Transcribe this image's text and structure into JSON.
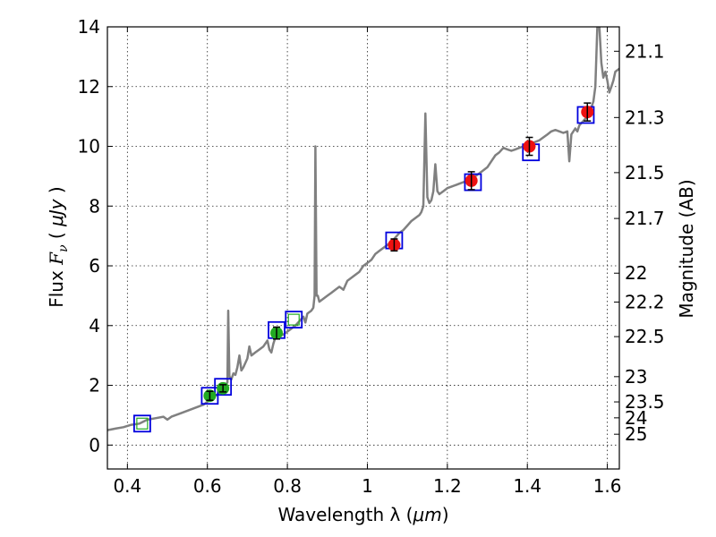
{
  "chart_data": {
    "type": "scatter",
    "title": "",
    "xlabel": {
      "prefix": "Wavelength  λ (",
      "unit": "μm",
      "suffix": ")"
    },
    "ylabel": {
      "prefix": "Flux  ",
      "symbol": "F",
      "subscript": "ν",
      "mid": "  ( ",
      "unit": "μJy",
      "suffix": " )"
    },
    "y2label": "Magnitude (AB)",
    "xlim": [
      0.35,
      1.63
    ],
    "ylim": [
      -0.8,
      14
    ],
    "xticks": [
      0.4,
      0.6,
      0.8,
      1.0,
      1.2,
      1.4,
      1.6
    ],
    "xtick_labels": [
      "0.4",
      "0.6",
      "0.8",
      "1",
      "1.2",
      "1.4",
      "1.6"
    ],
    "yticks": [
      0,
      2,
      4,
      6,
      8,
      10,
      12,
      14
    ],
    "ytick_labels": [
      "0",
      "2",
      "4",
      "6",
      "8",
      "10",
      "12",
      "14"
    ],
    "y2ticks": [
      {
        "label": "21.1",
        "mag": 21.1
      },
      {
        "label": "21.3",
        "mag": 21.3
      },
      {
        "label": "21.5",
        "mag": 21.5
      },
      {
        "label": "21.7",
        "mag": 21.7
      },
      {
        "label": "22",
        "mag": 22.0
      },
      {
        "label": "22.2",
        "mag": 22.2
      },
      {
        "label": "22.5",
        "mag": 22.5
      },
      {
        "label": "23",
        "mag": 23.0
      },
      {
        "label": "23.5",
        "mag": 23.5
      },
      {
        "label": "24",
        "mag": 24.0
      },
      {
        "label": "25",
        "mag": 25.0
      }
    ],
    "grid": true,
    "colors": {
      "spectrum": "#808080",
      "model_box": "#0000dd",
      "optical_point": "#22aa22",
      "nir_point": "#ee1111",
      "errorbar": "#000000"
    },
    "spectrum": [
      [
        0.35,
        0.5
      ],
      [
        0.37,
        0.55
      ],
      [
        0.39,
        0.6
      ],
      [
        0.41,
        0.68
      ],
      [
        0.43,
        0.72
      ],
      [
        0.45,
        0.85
      ],
      [
        0.47,
        0.9
      ],
      [
        0.49,
        0.95
      ],
      [
        0.5,
        0.85
      ],
      [
        0.51,
        0.95
      ],
      [
        0.53,
        1.05
      ],
      [
        0.55,
        1.15
      ],
      [
        0.57,
        1.25
      ],
      [
        0.59,
        1.35
      ],
      [
        0.6,
        1.45
      ],
      [
        0.61,
        1.55
      ],
      [
        0.62,
        1.65
      ],
      [
        0.63,
        1.75
      ],
      [
        0.635,
        1.85
      ],
      [
        0.64,
        1.9
      ],
      [
        0.645,
        2.0
      ],
      [
        0.65,
        2.1
      ],
      [
        0.652,
        4.5
      ],
      [
        0.655,
        2.3
      ],
      [
        0.66,
        2.2
      ],
      [
        0.665,
        2.4
      ],
      [
        0.67,
        2.35
      ],
      [
        0.675,
        2.6
      ],
      [
        0.68,
        3.0
      ],
      [
        0.685,
        2.5
      ],
      [
        0.69,
        2.6
      ],
      [
        0.7,
        2.9
      ],
      [
        0.705,
        3.3
      ],
      [
        0.71,
        3.0
      ],
      [
        0.72,
        3.1
      ],
      [
        0.73,
        3.2
      ],
      [
        0.74,
        3.3
      ],
      [
        0.75,
        3.5
      ],
      [
        0.755,
        3.2
      ],
      [
        0.76,
        3.1
      ],
      [
        0.765,
        3.4
      ],
      [
        0.77,
        3.6
      ],
      [
        0.78,
        3.65
      ],
      [
        0.79,
        3.7
      ],
      [
        0.8,
        3.8
      ],
      [
        0.81,
        3.9
      ],
      [
        0.82,
        4.0
      ],
      [
        0.83,
        4.15
      ],
      [
        0.84,
        4.3
      ],
      [
        0.845,
        4.1
      ],
      [
        0.85,
        4.4
      ],
      [
        0.86,
        4.5
      ],
      [
        0.865,
        4.6
      ],
      [
        0.868,
        5.0
      ],
      [
        0.87,
        10.0
      ],
      [
        0.873,
        5.0
      ],
      [
        0.876,
        5.0
      ],
      [
        0.88,
        4.8
      ],
      [
        0.89,
        4.9
      ],
      [
        0.9,
        5.0
      ],
      [
        0.91,
        5.1
      ],
      [
        0.92,
        5.2
      ],
      [
        0.93,
        5.3
      ],
      [
        0.94,
        5.2
      ],
      [
        0.95,
        5.5
      ],
      [
        0.96,
        5.6
      ],
      [
        0.97,
        5.7
      ],
      [
        0.98,
        5.8
      ],
      [
        0.99,
        6.0
      ],
      [
        1.0,
        6.1
      ],
      [
        1.01,
        6.2
      ],
      [
        1.02,
        6.4
      ],
      [
        1.03,
        6.5
      ],
      [
        1.04,
        6.6
      ],
      [
        1.05,
        6.7
      ],
      [
        1.06,
        6.8
      ],
      [
        1.07,
        6.95
      ],
      [
        1.08,
        7.1
      ],
      [
        1.09,
        7.2
      ],
      [
        1.1,
        7.35
      ],
      [
        1.11,
        7.5
      ],
      [
        1.12,
        7.6
      ],
      [
        1.13,
        7.7
      ],
      [
        1.135,
        7.8
      ],
      [
        1.14,
        8.0
      ],
      [
        1.145,
        11.1
      ],
      [
        1.15,
        8.3
      ],
      [
        1.155,
        8.1
      ],
      [
        1.16,
        8.2
      ],
      [
        1.165,
        8.5
      ],
      [
        1.17,
        9.4
      ],
      [
        1.175,
        8.5
      ],
      [
        1.18,
        8.4
      ],
      [
        1.19,
        8.5
      ],
      [
        1.2,
        8.6
      ],
      [
        1.21,
        8.65
      ],
      [
        1.22,
        8.7
      ],
      [
        1.23,
        8.75
      ],
      [
        1.24,
        8.8
      ],
      [
        1.25,
        8.85
      ],
      [
        1.26,
        8.9
      ],
      [
        1.27,
        9.0
      ],
      [
        1.28,
        9.1
      ],
      [
        1.29,
        9.2
      ],
      [
        1.3,
        9.3
      ],
      [
        1.31,
        9.5
      ],
      [
        1.32,
        9.7
      ],
      [
        1.33,
        9.8
      ],
      [
        1.34,
        9.95
      ],
      [
        1.35,
        9.9
      ],
      [
        1.36,
        9.85
      ],
      [
        1.37,
        9.9
      ],
      [
        1.38,
        9.95
      ],
      [
        1.39,
        10.0
      ],
      [
        1.4,
        10.05
      ],
      [
        1.41,
        10.1
      ],
      [
        1.42,
        10.15
      ],
      [
        1.43,
        10.2
      ],
      [
        1.44,
        10.3
      ],
      [
        1.45,
        10.4
      ],
      [
        1.46,
        10.5
      ],
      [
        1.47,
        10.55
      ],
      [
        1.48,
        10.5
      ],
      [
        1.49,
        10.45
      ],
      [
        1.5,
        10.5
      ],
      [
        1.505,
        9.5
      ],
      [
        1.51,
        10.4
      ],
      [
        1.52,
        10.6
      ],
      [
        1.525,
        10.5
      ],
      [
        1.53,
        10.7
      ],
      [
        1.54,
        10.85
      ],
      [
        1.55,
        11.0
      ],
      [
        1.56,
        11.3
      ],
      [
        1.565,
        11.5
      ],
      [
        1.57,
        12.0
      ],
      [
        1.575,
        14.0
      ],
      [
        1.58,
        14.0
      ],
      [
        1.585,
        12.8
      ],
      [
        1.59,
        12.3
      ],
      [
        1.595,
        12.5
      ],
      [
        1.6,
        12.2
      ],
      [
        1.605,
        11.8
      ],
      [
        1.61,
        12.0
      ],
      [
        1.615,
        12.2
      ],
      [
        1.62,
        12.5
      ],
      [
        1.63,
        12.6
      ]
    ],
    "model_boxes": [
      {
        "x": 0.437,
        "y": 0.72
      },
      {
        "x": 0.606,
        "y": 1.65
      },
      {
        "x": 0.639,
        "y": 1.95
      },
      {
        "x": 0.773,
        "y": 3.85
      },
      {
        "x": 0.816,
        "y": 4.2
      },
      {
        "x": 1.067,
        "y": 6.85
      },
      {
        "x": 1.264,
        "y": 8.8
      },
      {
        "x": 1.409,
        "y": 9.8
      },
      {
        "x": 1.546,
        "y": 11.05
      }
    ],
    "optical_points": [
      {
        "x": 0.606,
        "y": 1.65,
        "err": 0.15
      },
      {
        "x": 0.639,
        "y": 1.9,
        "err": 0.12
      },
      {
        "x": 0.773,
        "y": 3.75,
        "err": 0.2
      }
    ],
    "nir_points": [
      {
        "x": 1.067,
        "y": 6.7,
        "err": 0.2
      },
      {
        "x": 1.26,
        "y": 8.85,
        "err": 0.3
      },
      {
        "x": 1.405,
        "y": 10.0,
        "err": 0.3
      },
      {
        "x": 1.55,
        "y": 11.15,
        "err": 0.3
      }
    ],
    "optical_open_markers": [
      {
        "x": 0.437,
        "y": 0.72
      },
      {
        "x": 0.816,
        "y": 4.2
      }
    ]
  }
}
